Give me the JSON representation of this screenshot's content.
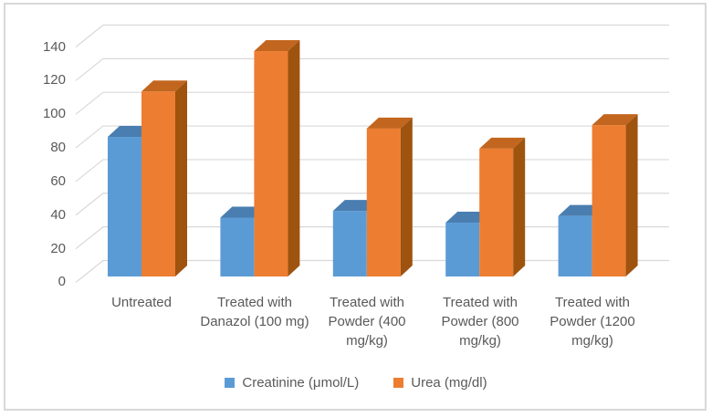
{
  "chart_data": {
    "type": "bar",
    "style": "3d-clustered-column",
    "title": "",
    "xlabel": "",
    "ylabel": "",
    "categories": [
      "Untreated",
      "Treated with Danazol (100 mg)",
      "Treated with Powder (400 mg/kg)",
      "Treated with Powder (800 mg/kg)",
      "Treated with Powder (1200 mg/kg)"
    ],
    "series": [
      {
        "name": "Creatinine (μmol/L)",
        "color": "#5b9bd5",
        "top_color": "#4a7eb0",
        "side_color": "#41719c",
        "values": [
          83,
          35,
          39,
          32,
          36
        ]
      },
      {
        "name": "Urea (mg/dl)",
        "color": "#ed7d31",
        "top_color": "#c2661f",
        "side_color": "#9e530f",
        "values": [
          110,
          134,
          88,
          76,
          90
        ]
      }
    ],
    "ylim": [
      0,
      140
    ],
    "ytick_step": 20,
    "yticks": [
      0,
      20,
      40,
      60,
      80,
      100,
      120,
      140
    ],
    "grid": true,
    "legend_position": "bottom",
    "theme": {
      "gridline_color": "#d9d9d9",
      "text_color": "#595959",
      "border_color": "#d8d8d8",
      "background": "#ffffff"
    }
  }
}
